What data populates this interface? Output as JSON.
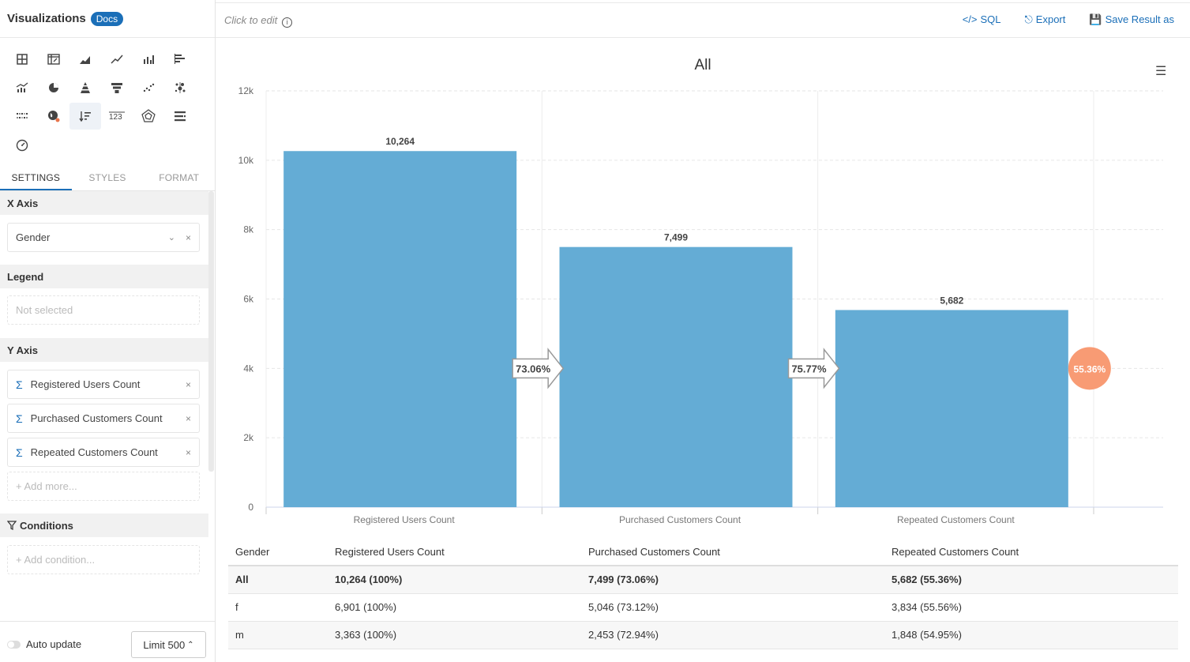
{
  "sidebar": {
    "title": "Visualizations",
    "docs_badge": "Docs",
    "icons": [
      "table-icon",
      "pivot-table-icon",
      "area-chart-icon",
      "line-chart-icon",
      "bar-chart-icon",
      "horizontal-bar-icon",
      "combo-chart-icon",
      "pie-chart-icon",
      "pyramid-icon",
      "funnel-icon",
      "scatter-icon",
      "bubble-icon",
      "heatmap-icon",
      "geo-map-icon",
      "sorted-bar-icon",
      "metric-number-icon",
      "radar-icon",
      "stacked-bar-icon",
      "gauge-icon"
    ],
    "active_icon": "sorted-bar-icon",
    "tabs": [
      "SETTINGS",
      "STYLES",
      "FORMAT"
    ],
    "active_tab": "SETTINGS",
    "x_axis": {
      "heading": "X Axis",
      "value": "Gender"
    },
    "legend": {
      "heading": "Legend",
      "placeholder": "Not selected"
    },
    "y_axis": {
      "heading": "Y Axis",
      "items": [
        "Registered Users Count",
        "Purchased Customers Count",
        "Repeated Customers Count"
      ],
      "add_more": "+ Add more..."
    },
    "conditions": {
      "heading": "Conditions",
      "add": "+ Add condition..."
    },
    "auto_update": "Auto update",
    "limit": "Limit 500"
  },
  "topbar": {
    "click_to_edit": "Click to edit",
    "info": "i",
    "sql": "SQL",
    "export": "Export",
    "save": "Save Result as"
  },
  "chart_data": {
    "type": "bar",
    "title": "All",
    "categories": [
      "Registered Users Count",
      "Purchased Customers Count",
      "Repeated Customers Count"
    ],
    "values": [
      10264,
      7499,
      5682
    ],
    "value_labels": [
      "10,264",
      "7,499",
      "5,682"
    ],
    "conversion_labels": [
      "73.06%",
      "75.77%"
    ],
    "overall_label": "55.36%",
    "ylim": [
      0,
      12000
    ],
    "yticks": [
      0,
      2000,
      4000,
      6000,
      8000,
      10000,
      12000
    ],
    "ytick_labels": [
      "0",
      "2k",
      "4k",
      "6k",
      "8k",
      "10k",
      "12k"
    ],
    "grid": true,
    "colors": {
      "bar": "#64acd5",
      "circle": "#f89b74"
    }
  },
  "table": {
    "headers": [
      "Gender",
      "Registered Users Count",
      "Purchased Customers Count",
      "Repeated Customers Count"
    ],
    "rows": [
      [
        "All",
        "10,264 (100%)",
        "7,499 (73.06%)",
        "5,682 (55.36%)"
      ],
      [
        "f",
        "6,901 (100%)",
        "5,046 (73.12%)",
        "3,834 (55.56%)"
      ],
      [
        "m",
        "3,363 (100%)",
        "2,453 (72.94%)",
        "1,848 (54.95%)"
      ]
    ]
  }
}
